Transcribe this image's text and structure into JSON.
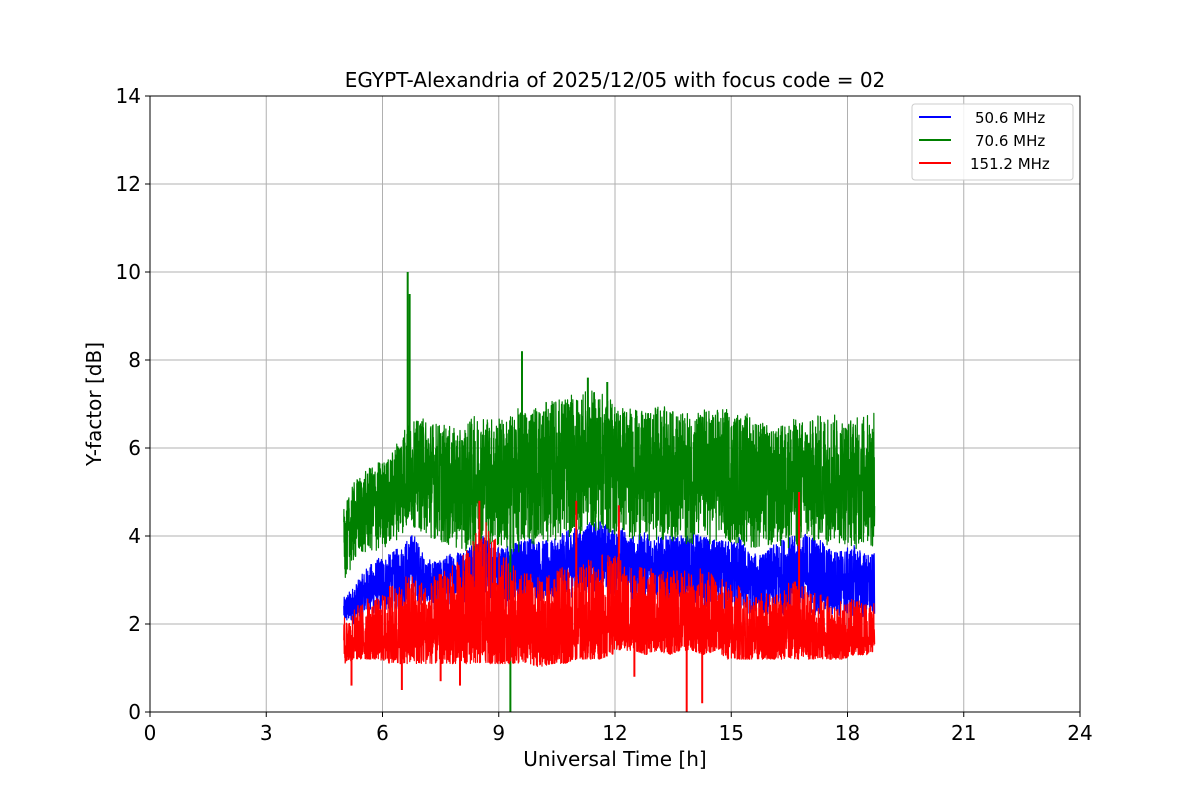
{
  "chart_data": {
    "type": "line",
    "title": "EGYPT-Alexandria of 2025/12/05 with focus code = 02",
    "xlabel": "Universal Time [h]",
    "ylabel": "Y-factor [dB]",
    "xlim": [
      0,
      24
    ],
    "ylim": [
      0,
      14
    ],
    "xticks": [
      0,
      3,
      6,
      9,
      12,
      15,
      18,
      21,
      24
    ],
    "yticks": [
      0,
      2,
      4,
      6,
      8,
      10,
      12,
      14
    ],
    "grid": true,
    "legend_position": "top-right",
    "series": [
      {
        "name": "50.6 MHz",
        "color": "#0000ff",
        "envelope": {
          "x": [
            5.0,
            5.3,
            5.6,
            5.9,
            6.2,
            6.5,
            6.8,
            7.1,
            7.4,
            7.7,
            8.0,
            8.3,
            8.6,
            8.9,
            9.2,
            9.5,
            9.8,
            10.1,
            10.4,
            10.7,
            11.0,
            11.3,
            11.6,
            11.9,
            12.2,
            12.5,
            12.8,
            13.1,
            13.4,
            13.7,
            14.0,
            14.3,
            14.6,
            14.9,
            15.2,
            15.5,
            15.8,
            16.1,
            16.4,
            16.7,
            17.0,
            17.3,
            17.6,
            17.9,
            18.2,
            18.5,
            18.7
          ],
          "high": [
            2.6,
            2.9,
            3.3,
            3.5,
            3.6,
            3.8,
            4.1,
            3.5,
            3.4,
            3.6,
            3.7,
            3.8,
            4.0,
            3.8,
            3.8,
            3.9,
            4.0,
            3.9,
            3.9,
            4.1,
            4.2,
            4.3,
            4.4,
            4.2,
            4.2,
            4.0,
            4.1,
            4.0,
            4.0,
            4.0,
            4.1,
            4.0,
            3.9,
            3.9,
            4.0,
            3.6,
            3.6,
            3.8,
            4.0,
            4.0,
            4.1,
            3.9,
            3.7,
            3.7,
            3.8,
            3.6,
            3.6
          ],
          "low": [
            2.0,
            2.0,
            2.2,
            2.2,
            2.3,
            2.3,
            2.5,
            2.4,
            2.3,
            2.4,
            2.5,
            2.5,
            2.6,
            2.5,
            2.4,
            2.5,
            2.6,
            2.5,
            2.5,
            2.6,
            2.6,
            2.7,
            2.7,
            2.6,
            2.6,
            2.5,
            2.5,
            2.5,
            2.4,
            2.4,
            2.4,
            2.4,
            2.3,
            2.3,
            2.3,
            2.2,
            2.2,
            2.2,
            2.2,
            2.2,
            2.2,
            2.2,
            2.1,
            2.1,
            2.1,
            2.1,
            2.1
          ]
        }
      },
      {
        "name": "70.6 MHz",
        "color": "#008000",
        "envelope": {
          "x": [
            5.0,
            5.3,
            5.6,
            5.9,
            6.2,
            6.5,
            6.8,
            7.1,
            7.4,
            7.7,
            8.0,
            8.3,
            8.6,
            8.9,
            9.2,
            9.5,
            9.8,
            10.1,
            10.4,
            10.7,
            11.0,
            11.3,
            11.6,
            11.9,
            12.2,
            12.5,
            12.8,
            13.1,
            13.4,
            13.7,
            14.0,
            14.3,
            14.6,
            14.9,
            15.2,
            15.5,
            15.8,
            16.1,
            16.4,
            16.7,
            17.0,
            17.3,
            17.6,
            17.9,
            18.2,
            18.5,
            18.7
          ],
          "high": [
            4.6,
            5.3,
            5.5,
            5.7,
            5.8,
            6.5,
            6.6,
            6.7,
            6.6,
            6.5,
            6.4,
            6.7,
            6.8,
            6.7,
            6.7,
            6.9,
            7.0,
            7.0,
            7.1,
            7.2,
            7.2,
            7.3,
            7.3,
            7.1,
            7.0,
            6.9,
            6.8,
            7.0,
            6.9,
            6.8,
            6.8,
            6.9,
            6.9,
            6.9,
            6.8,
            6.8,
            6.6,
            6.4,
            6.6,
            6.7,
            6.6,
            6.8,
            6.8,
            6.7,
            6.7,
            6.8,
            6.8
          ],
          "low": [
            3.0,
            3.4,
            3.6,
            3.6,
            3.8,
            4.0,
            4.2,
            4.0,
            3.9,
            3.7,
            3.7,
            3.6,
            3.8,
            3.7,
            3.6,
            3.6,
            3.8,
            3.8,
            3.9,
            3.9,
            4.0,
            4.1,
            4.1,
            4.0,
            4.0,
            3.9,
            3.9,
            3.9,
            3.9,
            3.8,
            3.8,
            3.8,
            3.8,
            3.8,
            3.8,
            3.7,
            3.7,
            3.7,
            3.7,
            3.7,
            3.8,
            3.8,
            3.8,
            3.8,
            3.7,
            3.7,
            3.7
          ]
        },
        "spikes": [
          {
            "x": 6.65,
            "y": 10.0
          },
          {
            "x": 6.7,
            "y": 9.5
          },
          {
            "x": 9.6,
            "y": 8.2
          },
          {
            "x": 11.3,
            "y": 7.6
          },
          {
            "x": 11.8,
            "y": 7.5
          },
          {
            "x": 9.3,
            "y": 0.0
          }
        ]
      },
      {
        "name": "151.2 MHz",
        "color": "#ff0000",
        "envelope": {
          "x": [
            5.0,
            5.3,
            5.6,
            5.9,
            6.2,
            6.5,
            6.8,
            7.1,
            7.4,
            7.7,
            8.0,
            8.3,
            8.6,
            8.9,
            9.2,
            9.5,
            9.8,
            10.1,
            10.4,
            10.7,
            11.0,
            11.3,
            11.6,
            11.9,
            12.2,
            12.5,
            12.8,
            13.1,
            13.4,
            13.7,
            14.0,
            14.3,
            14.6,
            14.9,
            15.2,
            15.5,
            15.8,
            16.1,
            16.4,
            16.7,
            17.0,
            17.3,
            17.6,
            17.9,
            18.2,
            18.5,
            18.7
          ],
          "high": [
            2.2,
            2.4,
            2.6,
            2.6,
            2.9,
            3.0,
            3.2,
            3.0,
            3.1,
            3.3,
            3.5,
            3.9,
            4.4,
            4.0,
            3.5,
            3.2,
            3.2,
            3.0,
            3.2,
            3.3,
            3.3,
            3.5,
            3.6,
            3.6,
            3.5,
            3.3,
            3.3,
            3.2,
            3.2,
            3.3,
            3.2,
            3.3,
            3.1,
            3.0,
            2.9,
            2.6,
            2.7,
            2.8,
            2.9,
            3.0,
            2.8,
            2.7,
            2.6,
            2.5,
            2.6,
            2.6,
            2.5
          ],
          "low": [
            1.1,
            1.2,
            1.2,
            1.2,
            1.1,
            1.1,
            1.1,
            1.1,
            1.1,
            1.1,
            1.1,
            1.1,
            1.1,
            1.1,
            1.1,
            1.1,
            1.1,
            1.0,
            1.1,
            1.1,
            1.2,
            1.2,
            1.2,
            1.3,
            1.4,
            1.4,
            1.3,
            1.4,
            1.3,
            1.4,
            1.4,
            1.3,
            1.4,
            1.2,
            1.2,
            1.2,
            1.2,
            1.2,
            1.2,
            1.2,
            1.2,
            1.2,
            1.2,
            1.2,
            1.3,
            1.3,
            1.4
          ]
        },
        "spikes": [
          {
            "x": 8.5,
            "y": 4.8
          },
          {
            "x": 11.0,
            "y": 4.8
          },
          {
            "x": 12.1,
            "y": 4.7
          },
          {
            "x": 16.75,
            "y": 5.0
          },
          {
            "x": 5.2,
            "y": 0.6
          },
          {
            "x": 6.5,
            "y": 0.5
          },
          {
            "x": 7.5,
            "y": 0.7
          },
          {
            "x": 8.0,
            "y": 0.6
          },
          {
            "x": 13.85,
            "y": 0.0
          },
          {
            "x": 14.25,
            "y": 0.2
          },
          {
            "x": 12.5,
            "y": 0.8
          }
        ]
      }
    ]
  }
}
